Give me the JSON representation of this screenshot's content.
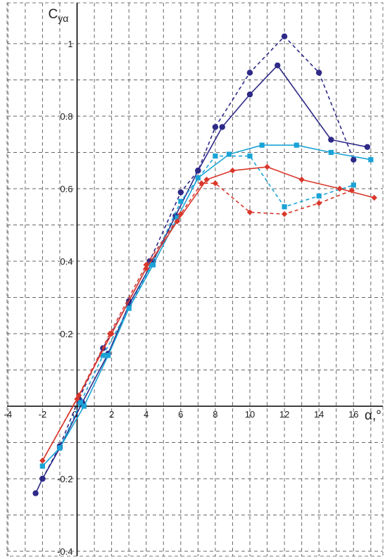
{
  "chart_data": {
    "type": "line",
    "xlabel": "α,°",
    "ylabel_main": "C",
    "ylabel_sub": "yα",
    "xlim": [
      -4,
      17.2
    ],
    "ylim": [
      -0.4,
      1.04
    ],
    "x_ticks": [
      -4,
      -2,
      0,
      2,
      4,
      6,
      8,
      10,
      12,
      14,
      16
    ],
    "y_ticks": [
      -0.4,
      -0.2,
      0.2,
      0.4,
      0.6,
      0.8,
      1
    ],
    "x_tick_labels": [
      "-4",
      "-2",
      "0",
      "2",
      "4",
      "6",
      "8",
      "10",
      "12",
      "14",
      "16"
    ],
    "y_tick_labels": [
      "-0.4",
      "-0.2",
      "0.2",
      "0.4",
      "0.6",
      "0.8",
      "1"
    ],
    "grid": true,
    "series": [
      {
        "color": "#2e2a87",
        "dash": "dashed",
        "marker": "circle",
        "x": [
          -2,
          -1,
          0.1,
          1.5,
          3,
          4.2,
          6,
          7,
          8,
          10,
          12,
          14,
          16
        ],
        "y": [
          -0.2,
          -0.11,
          0.02,
          0.16,
          0.29,
          0.4,
          0.59,
          0.65,
          0.77,
          0.92,
          1.02,
          0.92,
          0.68
        ]
      },
      {
        "color": "#2e2a87",
        "dash": "solid",
        "marker": "circle",
        "x": [
          -2.4,
          -2,
          -1,
          0.3,
          1.8,
          3,
          4.4,
          5.7,
          7,
          8.4,
          10,
          11.6,
          14.7,
          16.8
        ],
        "y": [
          -0.24,
          -0.2,
          -0.115,
          0.01,
          0.145,
          0.28,
          0.4,
          0.525,
          0.65,
          0.77,
          0.86,
          0.94,
          0.735,
          0.715
        ]
      },
      {
        "color": "#1aa3d6",
        "dash": "dashed",
        "marker": "square",
        "x": [
          -2,
          -1,
          0.2,
          1.5,
          3,
          4.3,
          6,
          8,
          10,
          12,
          14,
          16
        ],
        "y": [
          -0.165,
          -0.115,
          0.01,
          0.14,
          0.27,
          0.39,
          0.565,
          0.69,
          0.69,
          0.55,
          0.58,
          0.61
        ]
      },
      {
        "color": "#1aa3d6",
        "dash": "solid",
        "marker": "square",
        "x": [
          -2,
          -1,
          0.4,
          1.8,
          3,
          4.4,
          5.8,
          7,
          8.8,
          10.7,
          12.7,
          14.7,
          17
        ],
        "y": [
          -0.165,
          -0.115,
          0.0,
          0.14,
          0.27,
          0.39,
          0.52,
          0.63,
          0.695,
          0.72,
          0.72,
          0.7,
          0.68
        ]
      },
      {
        "color": "#d9372b",
        "dash": "dashed",
        "marker": "diamond",
        "x": [
          -2,
          0.1,
          1.9,
          4,
          6,
          7.2,
          8,
          10,
          12,
          14,
          15.9
        ],
        "y": [
          -0.15,
          0.03,
          0.2,
          0.39,
          0.53,
          0.615,
          0.615,
          0.535,
          0.53,
          0.56,
          0.595
        ]
      },
      {
        "color": "#d9372b",
        "dash": "solid",
        "marker": "diamond",
        "x": [
          -2,
          0,
          2,
          4,
          5.8,
          7.5,
          9,
          11,
          13,
          15.2,
          17.2
        ],
        "y": [
          -0.15,
          0.02,
          0.2,
          0.38,
          0.51,
          0.625,
          0.65,
          0.66,
          0.625,
          0.6,
          0.575
        ]
      }
    ]
  }
}
